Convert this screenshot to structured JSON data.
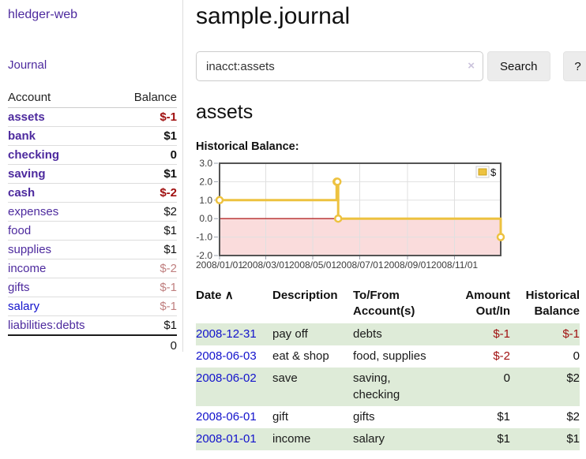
{
  "app": {
    "brand": "hledger-web"
  },
  "nav": {
    "journal": "Journal"
  },
  "sidebar": {
    "headers": {
      "account": "Account",
      "balance": "Balance"
    },
    "accounts": [
      {
        "name": "assets",
        "depth": 1,
        "balance": "$-1",
        "bold": true,
        "name_color": "purple",
        "balance_style": "neg-strong"
      },
      {
        "name": "bank",
        "depth": 2,
        "balance": "$1",
        "bold": true,
        "name_color": "purple",
        "balance_style": "normal"
      },
      {
        "name": "checking",
        "depth": 3,
        "balance": "0",
        "bold": true,
        "name_color": "purple",
        "balance_style": "normal"
      },
      {
        "name": "saving",
        "depth": 3,
        "balance": "$1",
        "bold": true,
        "name_color": "purple",
        "balance_style": "normal"
      },
      {
        "name": "cash",
        "depth": 2,
        "balance": "$-2",
        "bold": true,
        "name_color": "purple",
        "balance_style": "neg-strong"
      },
      {
        "name": "expenses",
        "depth": 1,
        "balance": "$2",
        "bold": false,
        "name_color": "purple",
        "balance_style": "normal"
      },
      {
        "name": "food",
        "depth": 2,
        "balance": "$1",
        "bold": false,
        "name_color": "purple",
        "balance_style": "normal"
      },
      {
        "name": "supplies",
        "depth": 2,
        "balance": "$1",
        "bold": false,
        "name_color": "purple",
        "balance_style": "normal"
      },
      {
        "name": "income",
        "depth": 1,
        "balance": "$-2",
        "bold": false,
        "name_color": "purple",
        "balance_style": "neg-faded"
      },
      {
        "name": "gifts",
        "depth": 2,
        "balance": "$-1",
        "bold": false,
        "name_color": "purple",
        "balance_style": "neg-faded"
      },
      {
        "name": "salary",
        "depth": 2,
        "balance": "$-1",
        "bold": false,
        "name_color": "blue",
        "balance_style": "neg-faded"
      },
      {
        "name": "liabilities:debts",
        "depth": 1,
        "balance": "$1",
        "bold": false,
        "name_color": "purple",
        "balance_style": "normal"
      }
    ],
    "total": "0"
  },
  "header": {
    "title": "sample.journal"
  },
  "search": {
    "value": "inacct:assets",
    "clear_icon": "×",
    "button": "Search",
    "help_button": "?"
  },
  "account_page": {
    "heading": "assets",
    "chart_label": "Historical Balance:"
  },
  "chart_data": {
    "type": "line",
    "title": "Historical Balance:",
    "x_range": [
      "2008-01-01",
      "2008-12-31"
    ],
    "y_range": [
      -2,
      3
    ],
    "y_ticks": [
      3.0,
      2.0,
      1.0,
      0.0,
      -1.0,
      -2.0
    ],
    "y_tick_labels": [
      "3.0",
      "2.0",
      "1.0",
      "0.0",
      "-1.0",
      "-2.0"
    ],
    "x_ticks": [
      "2008/01/01",
      "2008/03/01",
      "2008/05/01",
      "2008/07/01",
      "2008/09/01",
      "2008/11/01"
    ],
    "grid": true,
    "legend": {
      "label": "$",
      "position": "top-right"
    },
    "series": [
      {
        "name": "$",
        "color": "#edc240",
        "step": true,
        "points": [
          {
            "x": "2008-01-01",
            "y": 1
          },
          {
            "x": "2008-06-01",
            "y": 2
          },
          {
            "x": "2008-06-02",
            "y": 2
          },
          {
            "x": "2008-06-03",
            "y": 0
          },
          {
            "x": "2008-12-31",
            "y": -1
          }
        ]
      }
    ],
    "negative_zone": {
      "fill": "#fadcdc",
      "zero_line_color": "#b52a2a"
    }
  },
  "transactions": {
    "headers": {
      "date": "Date",
      "sort_icon": "∧",
      "description": "Description",
      "accounts_line1": "To/From",
      "accounts_line2": "Account(s)",
      "amount_line1": "Amount",
      "amount_line2": "Out/In",
      "balance_line1": "Historical",
      "balance_line2": "Balance"
    },
    "rows": [
      {
        "date": "2008-12-31",
        "description": "pay off",
        "accounts": "debts",
        "amount": "$-1",
        "amount_neg": true,
        "balance": "$-1",
        "balance_neg": true
      },
      {
        "date": "2008-06-03",
        "description": "eat & shop",
        "accounts": "food, supplies",
        "amount": "$-2",
        "amount_neg": true,
        "balance": "0",
        "balance_neg": false
      },
      {
        "date": "2008-06-02",
        "description": "save",
        "accounts": "saving,\nchecking",
        "amount": "0",
        "amount_neg": false,
        "balance": "$2",
        "balance_neg": false
      },
      {
        "date": "2008-06-01",
        "description": "gift",
        "accounts": "gifts",
        "amount": "$1",
        "amount_neg": false,
        "balance": "$2",
        "balance_neg": false
      },
      {
        "date": "2008-01-01",
        "description": "income",
        "accounts": "salary",
        "amount": "$1",
        "amount_neg": false,
        "balance": "$1",
        "balance_neg": false
      }
    ]
  },
  "colors": {
    "link_purple": "#4d2a9e",
    "link_blue": "#1212cc",
    "negative_strong": "#a01010",
    "negative_faded": "#c08080",
    "row_stripe_green": "#deebd8",
    "chart_line": "#edc240",
    "chart_border": "#545454",
    "negative_zone_fill": "#fadcdc",
    "zero_line": "#b52a2a"
  }
}
